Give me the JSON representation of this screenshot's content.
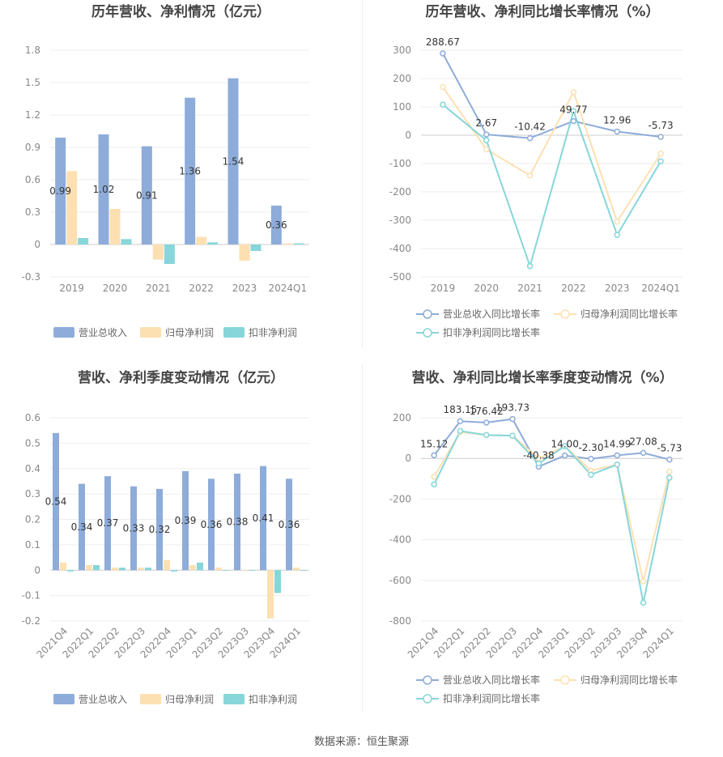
{
  "source_text": "数据来源：恒生聚源",
  "legend_colors": {
    "营业总收入": "#8eacd9",
    "归母净利润": "#fde0b2",
    "扣非净利润": "#87d6d9",
    "营业总收入同比增长率": "#8eacd9",
    "归母净利润同比增长率": "#fde0b2",
    "扣非净利润同比增长率": "#87d6d9"
  },
  "chart_data": [
    {
      "type": "bar",
      "title": "历年营收、净利情况（亿元）",
      "categories": [
        "2019",
        "2020",
        "2021",
        "2022",
        "2023",
        "2024Q1"
      ],
      "ylim": [
        -0.3,
        1.8
      ],
      "yticks": [
        "1.8",
        "1.5",
        "1.2",
        "0.9",
        "0.6",
        "0.3",
        "0",
        "-0.3"
      ],
      "ytick_values": [
        1.8,
        1.5,
        1.2,
        0.9,
        0.6,
        0.3,
        0,
        -0.3
      ],
      "legend_position": "bottom",
      "series": [
        {
          "name": "营业总收入",
          "values": [
            0.99,
            1.02,
            0.91,
            1.36,
            1.54,
            0.36
          ]
        },
        {
          "name": "归母净利润",
          "values": [
            0.68,
            0.33,
            -0.14,
            0.07,
            -0.15,
            0.01
          ]
        },
        {
          "name": "扣非净利润",
          "values": [
            0.06,
            0.05,
            -0.18,
            0.02,
            -0.06,
            0.01
          ]
        }
      ],
      "data_labels": [
        "0.99",
        "1.02",
        "0.91",
        "1.36",
        "1.54",
        "0.36"
      ]
    },
    {
      "type": "line",
      "title": "历年营收、净利同比增长率情况（%）",
      "categories": [
        "2019",
        "2020",
        "2021",
        "2022",
        "2023",
        "2024Q1"
      ],
      "ylim": [
        -500,
        300
      ],
      "yticks": [
        "300",
        "200",
        "100",
        "0",
        "-100",
        "-200",
        "-300",
        "-400",
        "-500"
      ],
      "ytick_values": [
        300,
        200,
        100,
        0,
        -100,
        -200,
        -300,
        -400,
        -500
      ],
      "legend_position": "bottom",
      "series": [
        {
          "name": "营业总收入同比增长率",
          "values": [
            288.67,
            2.67,
            -10.42,
            49.77,
            12.96,
            -5.73
          ]
        },
        {
          "name": "归母净利润同比增长率",
          "values": [
            170,
            -50,
            -142,
            152,
            -305,
            -65
          ]
        },
        {
          "name": "扣非净利润同比增长率",
          "values": [
            108,
            -18,
            -462,
            85,
            -352,
            -92
          ]
        }
      ],
      "data_labels": [
        "288.67",
        "2.67",
        "-10.42",
        "49.77",
        "12.96",
        "-5.73"
      ]
    },
    {
      "type": "bar",
      "title": "营收、净利季度变动情况（亿元）",
      "categories": [
        "2021Q4",
        "2022Q1",
        "2022Q2",
        "2022Q3",
        "2022Q4",
        "2023Q1",
        "2023Q2",
        "2023Q3",
        "2023Q4",
        "2024Q1"
      ],
      "ylim": [
        -0.2,
        0.6
      ],
      "yticks": [
        "0.6",
        "0.5",
        "0.4",
        "0.3",
        "0.2",
        "0.1",
        "0",
        "-0.1",
        "-0.2"
      ],
      "ytick_values": [
        0.6,
        0.5,
        0.4,
        0.3,
        0.2,
        0.1,
        0,
        -0.1,
        -0.2
      ],
      "legend_position": "bottom",
      "series": [
        {
          "name": "营业总收入",
          "values": [
            0.54,
            0.34,
            0.37,
            0.33,
            0.32,
            0.39,
            0.36,
            0.38,
            0.41,
            0.36
          ]
        },
        {
          "name": "归母净利润",
          "values": [
            0.03,
            0.02,
            0.01,
            0.01,
            0.04,
            0.02,
            0.01,
            0.0,
            -0.19,
            0.01
          ]
        },
        {
          "name": "扣非净利润",
          "values": [
            -0.005,
            0.02,
            0.01,
            0.01,
            -0.005,
            0.03,
            0.0,
            0.0,
            -0.09,
            0.0
          ]
        }
      ],
      "data_labels": [
        "0.54",
        "0.34",
        "0.37",
        "0.33",
        "0.32",
        "0.39",
        "0.36",
        "0.38",
        "0.41",
        "0.36"
      ]
    },
    {
      "type": "line",
      "title": "营收、净利同比增长率季度变动情况（%）",
      "categories": [
        "2021Q4",
        "2022Q1",
        "2022Q2",
        "2022Q3",
        "2022Q4",
        "2023Q1",
        "2023Q2",
        "2023Q3",
        "2023Q4",
        "2024Q1"
      ],
      "ylim": [
        -800,
        200
      ],
      "yticks": [
        "200",
        "0",
        "-200",
        "-400",
        "-600",
        "-800"
      ],
      "ytick_values": [
        200,
        0,
        -200,
        -400,
        -600,
        -800
      ],
      "legend_position": "bottom",
      "series": [
        {
          "name": "营业总收入同比增长率",
          "values": [
            15.12,
            183.15,
            176.42,
            193.73,
            -40.38,
            14.0,
            -2.3,
            14.99,
            27.08,
            -5.73
          ]
        },
        {
          "name": "归母净利润同比增长率",
          "values": [
            -90,
            130,
            115,
            112,
            0,
            60,
            -60,
            -30,
            -605,
            -65
          ]
        },
        {
          "name": "扣非净利润同比增长率",
          "values": [
            -128,
            135,
            115,
            112,
            -25,
            60,
            -80,
            -30,
            -710,
            -95
          ]
        }
      ],
      "data_labels": [
        "15.12",
        "183.15",
        "176.42",
        "193.73",
        "-40.38",
        "14.00",
        "-2.30",
        "14.99",
        "27.08",
        "-5.73"
      ]
    }
  ]
}
